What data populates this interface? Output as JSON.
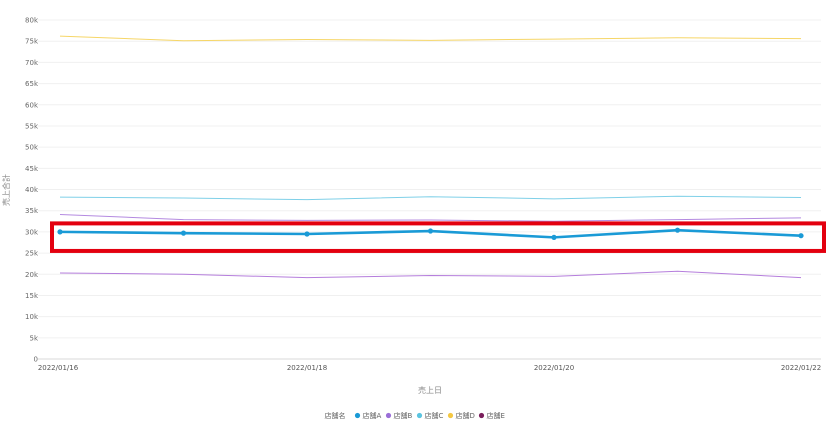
{
  "chart_data": {
    "type": "line",
    "xlabel": "売上日",
    "ylabel": "売上合計",
    "legend_title": "店舗名",
    "legend_position": "bottom-center",
    "grid": true,
    "ylim": [
      0,
      80000
    ],
    "y_ticks": [
      "0",
      "5k",
      "10k",
      "15k",
      "20k",
      "25k",
      "30k",
      "35k",
      "40k",
      "45k",
      "50k",
      "55k",
      "60k",
      "65k",
      "70k",
      "75k",
      "80k"
    ],
    "y_tick_values": [
      0,
      5000,
      10000,
      15000,
      20000,
      25000,
      30000,
      35000,
      40000,
      45000,
      50000,
      55000,
      60000,
      65000,
      70000,
      75000,
      80000
    ],
    "x": [
      "2022/01/16",
      "2022/01/17",
      "2022/01/18",
      "2022/01/19",
      "2022/01/20",
      "2022/01/21",
      "2022/01/22"
    ],
    "x_tick_labels": [
      "2022/01/16",
      "2022/01/18",
      "2022/01/20",
      "2022/01/22"
    ],
    "series": [
      {
        "name": "店舗A",
        "color": "#1a9ad6",
        "highlighted": true,
        "values": [
          30000,
          29700,
          29500,
          30200,
          28700,
          30400,
          29100
        ]
      },
      {
        "name": "店舗B",
        "color": "#b48ae0",
        "values": [
          34100,
          32900,
          32700,
          32800,
          32500,
          32900,
          33300
        ]
      },
      {
        "name": "店舗C",
        "color": "#7fd0e8",
        "values": [
          38200,
          38000,
          37600,
          38300,
          37800,
          38400,
          38100
        ]
      },
      {
        "name": "店舗D",
        "color": "#f6d667",
        "values": [
          76200,
          75100,
          75400,
          75200,
          75500,
          75800,
          75600
        ]
      },
      {
        "name": "店舗E",
        "color": "#b57edc",
        "values": [
          20300,
          20000,
          19200,
          19700,
          19500,
          20700,
          19200
        ]
      }
    ],
    "legend_marker_colors": [
      "#1a9ad6",
      "#9b6fd8",
      "#5bc4e0",
      "#f5c842",
      "#7a1f5c"
    ],
    "highlight_box": {
      "y_from": 25500,
      "y_to": 32000,
      "color": "#e3000f"
    }
  }
}
